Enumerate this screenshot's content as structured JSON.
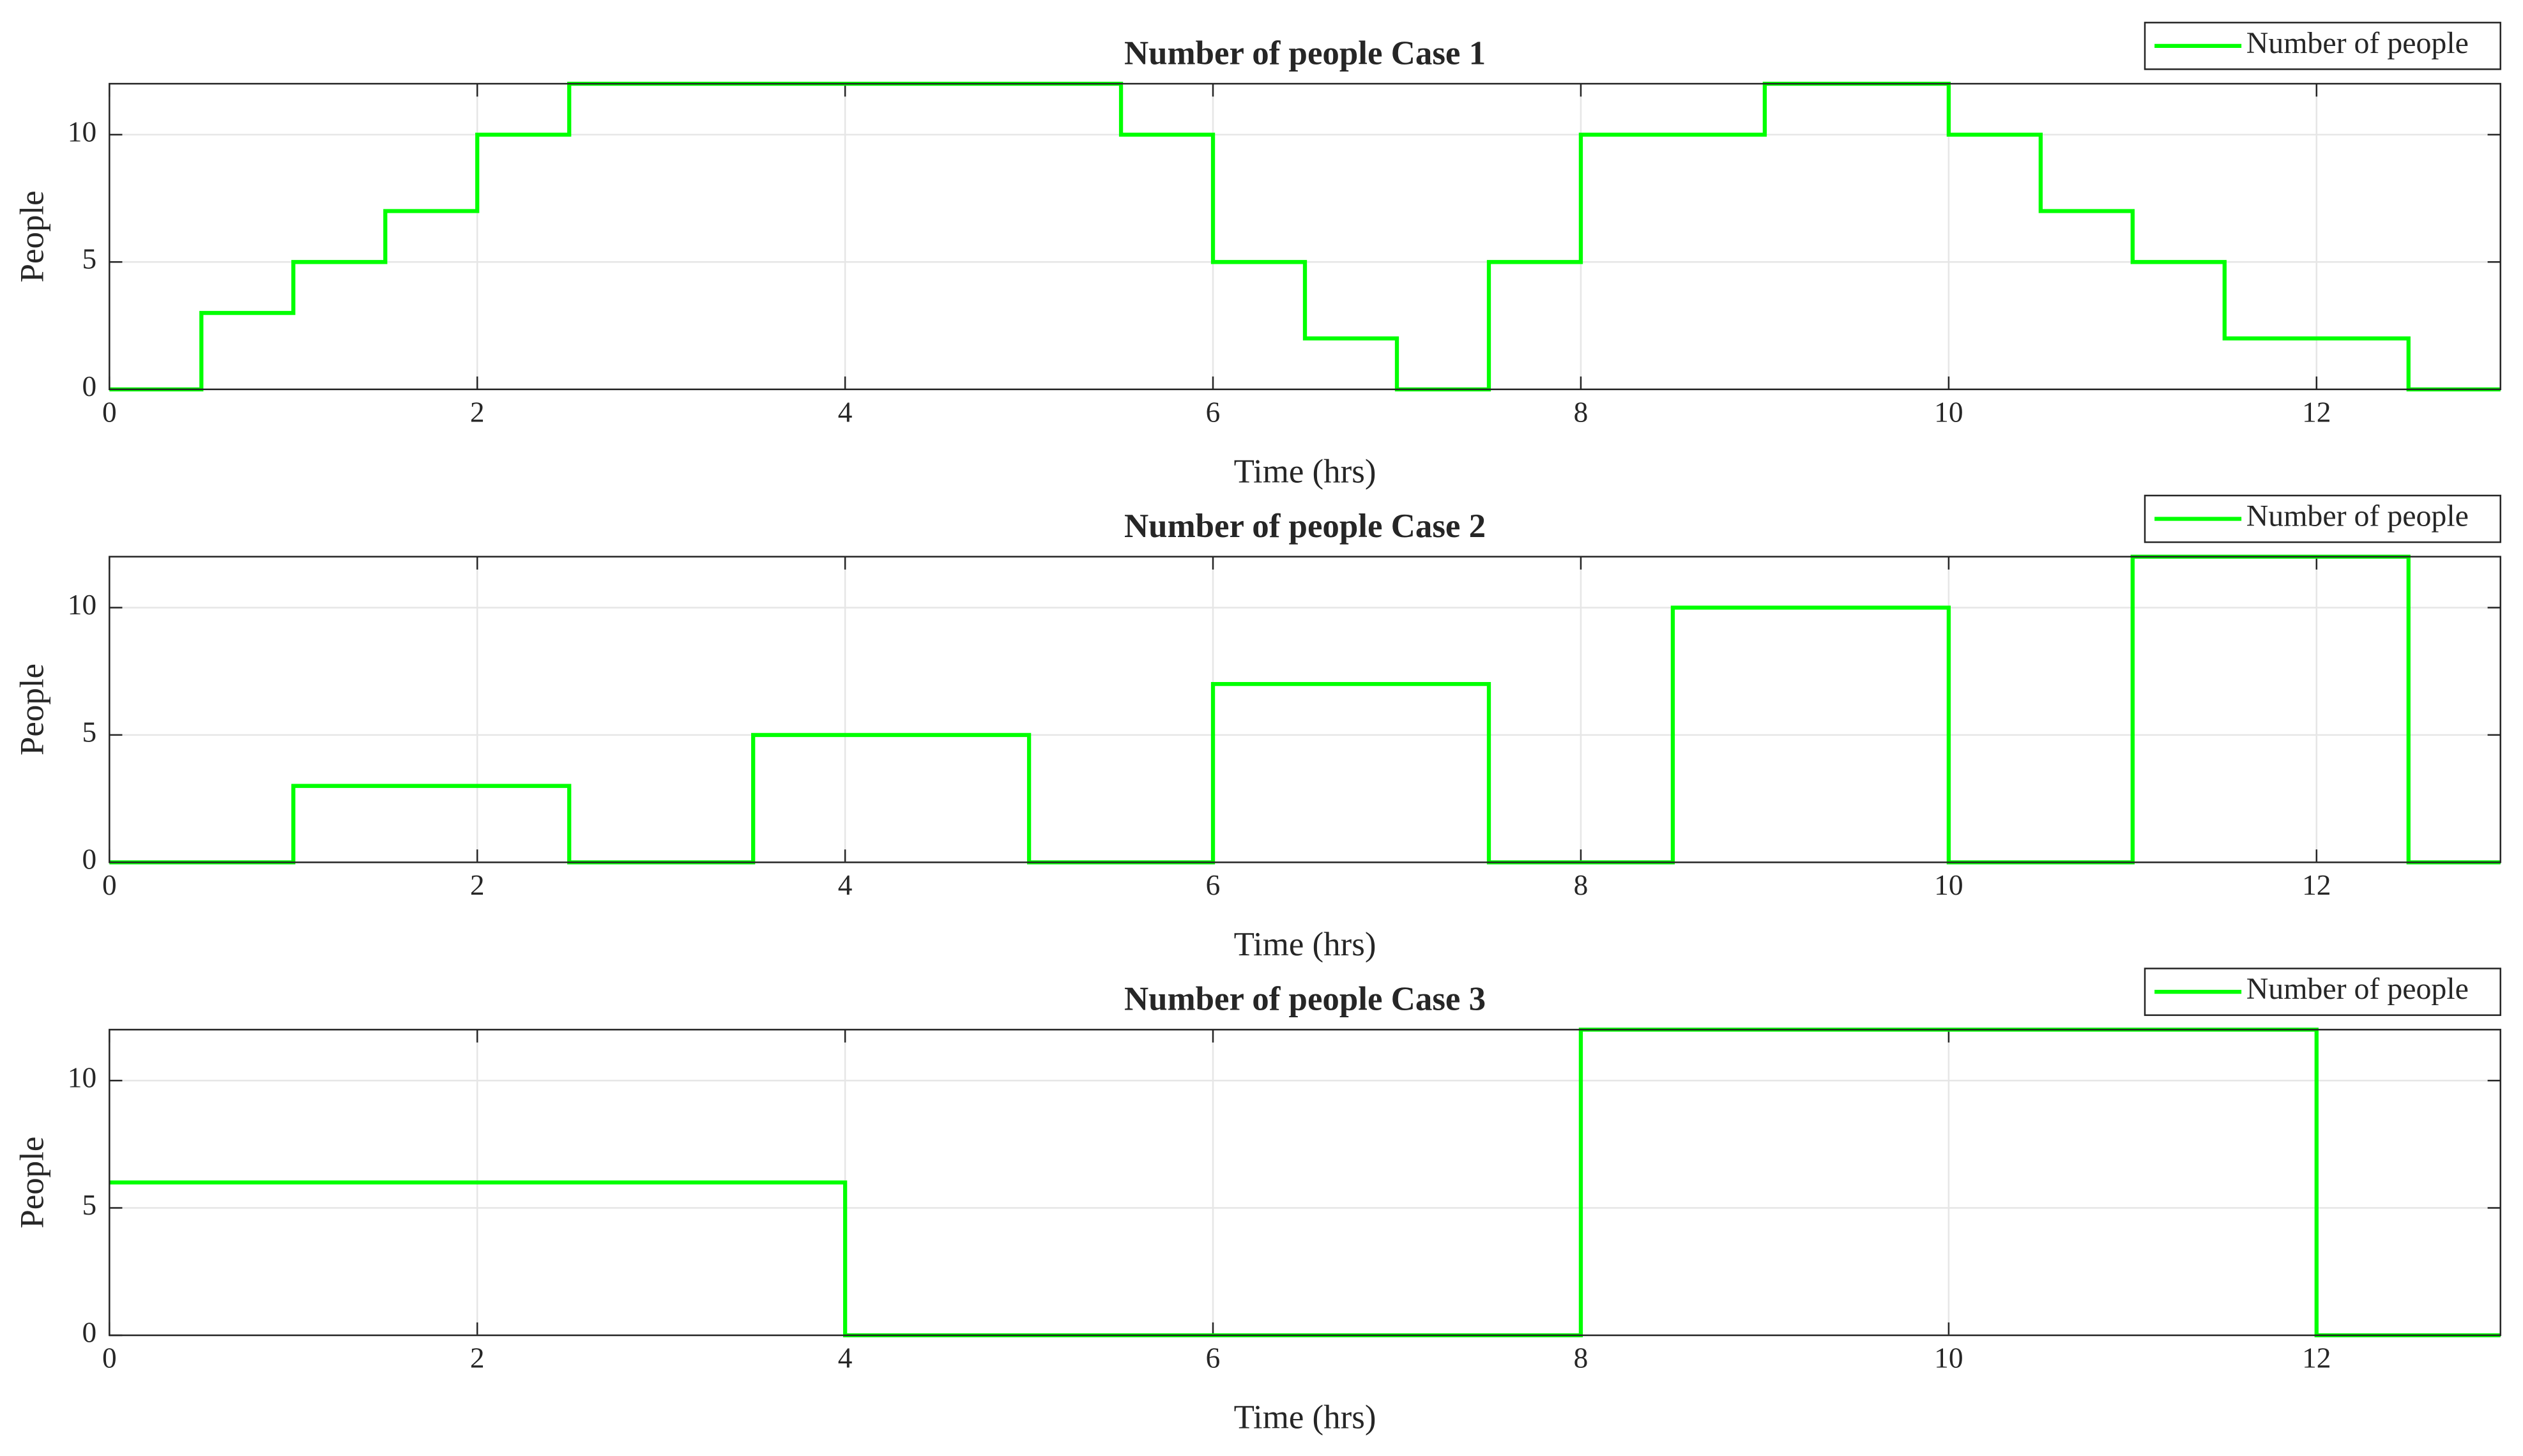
{
  "chart_data": [
    {
      "type": "line",
      "step": "post",
      "title": "Number of people Case 1",
      "xlabel": "Time (hrs)",
      "ylabel": "People",
      "x": [
        0,
        0.5,
        1,
        1.5,
        2,
        2.5,
        5.5,
        6,
        6.5,
        7,
        7.5,
        8,
        9,
        10,
        10.5,
        11,
        11.5,
        12.5,
        13
      ],
      "series": [
        {
          "name": "Number of people",
          "color": "#00ff00",
          "values": [
            0,
            3,
            5,
            7,
            10,
            12,
            10,
            5,
            2,
            0,
            5,
            10,
            12,
            10,
            7,
            5,
            2,
            0,
            0
          ]
        }
      ],
      "xlim": [
        0,
        13
      ],
      "xticks": [
        0,
        2,
        4,
        6,
        8,
        10,
        12
      ],
      "ylim": [
        0,
        12
      ],
      "yticks": [
        0,
        5,
        10
      ],
      "grid": true,
      "legend": "upper right"
    },
    {
      "type": "line",
      "step": "post",
      "title": "Number of people Case 2",
      "xlabel": "Time (hrs)",
      "ylabel": "People",
      "x": [
        0,
        1,
        2.5,
        3.5,
        5,
        6,
        7.5,
        8.5,
        10,
        11,
        12.5,
        13
      ],
      "series": [
        {
          "name": "Number of people",
          "color": "#00ff00",
          "values": [
            0,
            3,
            0,
            5,
            0,
            7,
            0,
            10,
            0,
            12,
            0,
            0
          ]
        }
      ],
      "xlim": [
        0,
        13
      ],
      "xticks": [
        0,
        2,
        4,
        6,
        8,
        10,
        12
      ],
      "ylim": [
        0,
        12
      ],
      "yticks": [
        0,
        5,
        10
      ],
      "grid": true,
      "legend": "upper right"
    },
    {
      "type": "line",
      "step": "post",
      "title": "Number of people Case 3",
      "xlabel": "Time (hrs)",
      "ylabel": "People",
      "x": [
        0,
        4,
        8,
        12,
        13
      ],
      "series": [
        {
          "name": "Number of people",
          "color": "#00ff00",
          "values": [
            6,
            0,
            12,
            0,
            0
          ]
        }
      ],
      "xlim": [
        0,
        13
      ],
      "xticks": [
        0,
        2,
        4,
        6,
        8,
        10,
        12
      ],
      "ylim": [
        0,
        12
      ],
      "yticks": [
        0,
        5,
        10
      ],
      "grid": true,
      "legend": "upper right"
    }
  ]
}
